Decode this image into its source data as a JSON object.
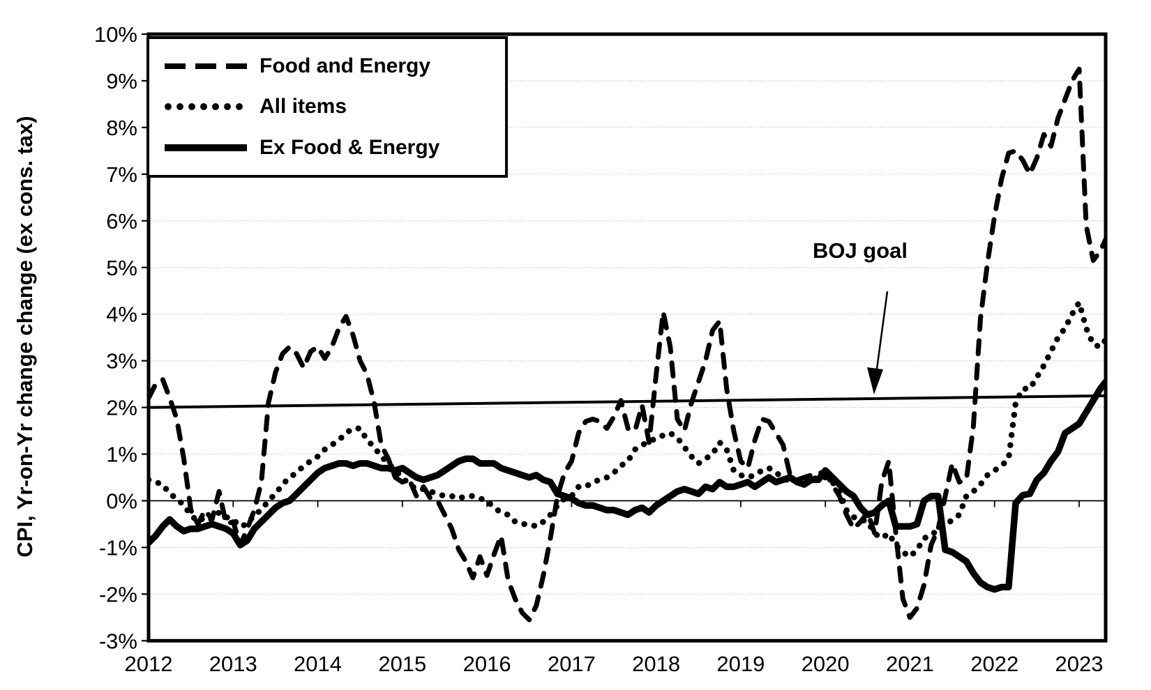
{
  "colors": {
    "line": "#000000",
    "grid": "#c9c9c9",
    "zero_axis": "#000000",
    "background": "#ffffff"
  },
  "chart_data": {
    "type": "line",
    "title": "",
    "xlabel": "",
    "ylabel": "CPI, Yr-on-Yr change change (ex cons. tax)",
    "ylim": [
      -3,
      10
    ],
    "grid": true,
    "legend_position": "top-left",
    "x_start": "2012-01",
    "x_end": "2023-05",
    "frequency": "monthly",
    "x_tick_labels": [
      "2012",
      "2013",
      "2014",
      "2015",
      "2016",
      "2017",
      "2018",
      "2019",
      "2020",
      "2021",
      "2022",
      "2023"
    ],
    "y_tick_values": [
      10,
      9,
      8,
      7,
      6,
      5,
      4,
      3,
      2,
      1,
      0,
      -1,
      -2,
      -3
    ],
    "y_tick_labels": [
      "10%",
      "9%",
      "8%",
      "7%",
      "6%",
      "5%",
      "4%",
      "3%",
      "2%",
      "1%",
      "0%",
      "-1%",
      "-2%",
      "-3%"
    ],
    "goal_line": {
      "label": "BOJ goal",
      "start_value": 2.0,
      "end_value": 2.25
    },
    "series": [
      {
        "name": "Food and Energy",
        "style": "dashed",
        "values": [
          2.2,
          2.5,
          2.6,
          2.2,
          1.75,
          0.9,
          -0.2,
          -0.5,
          -0.2,
          -0.4,
          0.2,
          -0.5,
          -0.45,
          -0.95,
          -0.6,
          -0.2,
          0.4,
          2.1,
          2.75,
          3.15,
          3.3,
          3.15,
          2.85,
          3.2,
          3.3,
          3.05,
          3.3,
          3.7,
          3.95,
          3.55,
          3.0,
          2.7,
          2.1,
          1.2,
          0.9,
          0.5,
          0.4,
          0.45,
          0.1,
          0.3,
          0.05,
          0.0,
          -0.3,
          -0.6,
          -1.05,
          -1.3,
          -1.65,
          -1.2,
          -1.6,
          -1.15,
          -0.75,
          -1.7,
          -2.1,
          -2.4,
          -2.55,
          -2.25,
          -1.6,
          -0.8,
          0.1,
          0.6,
          0.85,
          1.45,
          1.7,
          1.75,
          1.7,
          1.55,
          1.8,
          2.15,
          1.55,
          1.5,
          2.05,
          1.25,
          2.7,
          4.05,
          3.3,
          1.75,
          1.5,
          2.1,
          2.55,
          3.0,
          3.65,
          3.85,
          2.4,
          1.5,
          0.85,
          0.7,
          1.3,
          1.75,
          1.7,
          1.45,
          1.2,
          0.55,
          0.45,
          0.5,
          0.55,
          0.6,
          0.6,
          0.35,
          0.1,
          -0.3,
          -0.6,
          -0.45,
          -0.25,
          -0.7,
          0.4,
          0.85,
          -0.7,
          -2.1,
          -2.5,
          -2.3,
          -1.8,
          -0.95,
          -0.6,
          0.1,
          0.8,
          0.4,
          0.45,
          1.6,
          3.9,
          5.1,
          6.1,
          6.9,
          7.45,
          7.5,
          7.3,
          7.0,
          7.35,
          7.85,
          7.6,
          8.2,
          8.6,
          9.0,
          9.25,
          5.9,
          5.15,
          5.35,
          5.6
        ]
      },
      {
        "name": "All items",
        "style": "dotted",
        "values": [
          0.45,
          0.4,
          0.35,
          0.15,
          0.05,
          -0.1,
          -0.3,
          -0.45,
          -0.35,
          -0.4,
          -0.25,
          -0.35,
          -0.4,
          -0.55,
          -0.5,
          -0.3,
          -0.2,
          0.0,
          0.15,
          0.35,
          0.5,
          0.6,
          0.75,
          0.85,
          0.95,
          1.1,
          1.2,
          1.3,
          1.45,
          1.55,
          1.55,
          1.3,
          1.15,
          0.95,
          0.8,
          0.65,
          0.5,
          0.35,
          0.25,
          0.25,
          0.2,
          0.15,
          0.1,
          0.1,
          0.05,
          0.1,
          0.1,
          0.05,
          0.0,
          -0.15,
          -0.25,
          -0.3,
          -0.45,
          -0.5,
          -0.5,
          -0.55,
          -0.45,
          -0.3,
          -0.1,
          0.05,
          0.1,
          0.3,
          0.3,
          0.4,
          0.45,
          0.5,
          0.6,
          0.75,
          0.85,
          1.1,
          1.2,
          1.25,
          1.35,
          1.4,
          1.45,
          1.35,
          1.15,
          0.95,
          0.8,
          0.9,
          1.0,
          1.25,
          1.1,
          0.65,
          0.55,
          0.5,
          0.55,
          0.65,
          0.7,
          0.6,
          0.5,
          0.4,
          0.45,
          0.5,
          0.45,
          0.5,
          0.5,
          0.4,
          0.2,
          -0.2,
          -0.35,
          -0.4,
          -0.45,
          -0.7,
          -0.8,
          -0.7,
          -0.95,
          -1.1,
          -1.2,
          -1.05,
          -0.8,
          -0.75,
          -0.6,
          -0.55,
          -0.4,
          -0.3,
          0.1,
          0.2,
          0.35,
          0.55,
          0.65,
          0.75,
          0.9,
          2.1,
          2.4,
          2.4,
          2.65,
          2.9,
          3.2,
          3.5,
          3.7,
          4.0,
          4.25,
          3.7,
          3.35,
          3.3,
          3.45
        ]
      },
      {
        "name": "Ex Food & Energy",
        "style": "solid",
        "values": [
          -0.9,
          -0.75,
          -0.55,
          -0.4,
          -0.55,
          -0.65,
          -0.6,
          -0.6,
          -0.55,
          -0.5,
          -0.55,
          -0.6,
          -0.7,
          -0.95,
          -0.85,
          -0.6,
          -0.45,
          -0.3,
          -0.15,
          -0.05,
          0.0,
          0.15,
          0.3,
          0.45,
          0.6,
          0.7,
          0.75,
          0.8,
          0.8,
          0.75,
          0.8,
          0.8,
          0.75,
          0.7,
          0.7,
          0.65,
          0.7,
          0.6,
          0.5,
          0.45,
          0.5,
          0.55,
          0.65,
          0.75,
          0.85,
          0.9,
          0.9,
          0.8,
          0.8,
          0.8,
          0.7,
          0.65,
          0.6,
          0.55,
          0.5,
          0.55,
          0.45,
          0.4,
          0.15,
          0.1,
          0.05,
          -0.05,
          -0.1,
          -0.1,
          -0.15,
          -0.2,
          -0.2,
          -0.25,
          -0.3,
          -0.2,
          -0.15,
          -0.25,
          -0.1,
          0.0,
          0.1,
          0.2,
          0.25,
          0.2,
          0.15,
          0.3,
          0.25,
          0.4,
          0.3,
          0.3,
          0.35,
          0.4,
          0.3,
          0.4,
          0.5,
          0.4,
          0.45,
          0.5,
          0.4,
          0.35,
          0.45,
          0.45,
          0.65,
          0.5,
          0.35,
          0.2,
          0.1,
          -0.15,
          -0.3,
          -0.25,
          -0.1,
          0.0,
          -0.55,
          -0.55,
          -0.55,
          -0.5,
          0.0,
          0.1,
          0.1,
          -1.05,
          -1.1,
          -1.2,
          -1.3,
          -1.55,
          -1.75,
          -1.85,
          -1.9,
          -1.85,
          -1.85,
          -0.05,
          0.12,
          0.15,
          0.45,
          0.6,
          0.85,
          1.05,
          1.45,
          1.55,
          1.65,
          1.9,
          2.15,
          2.4,
          2.55
        ]
      }
    ]
  }
}
